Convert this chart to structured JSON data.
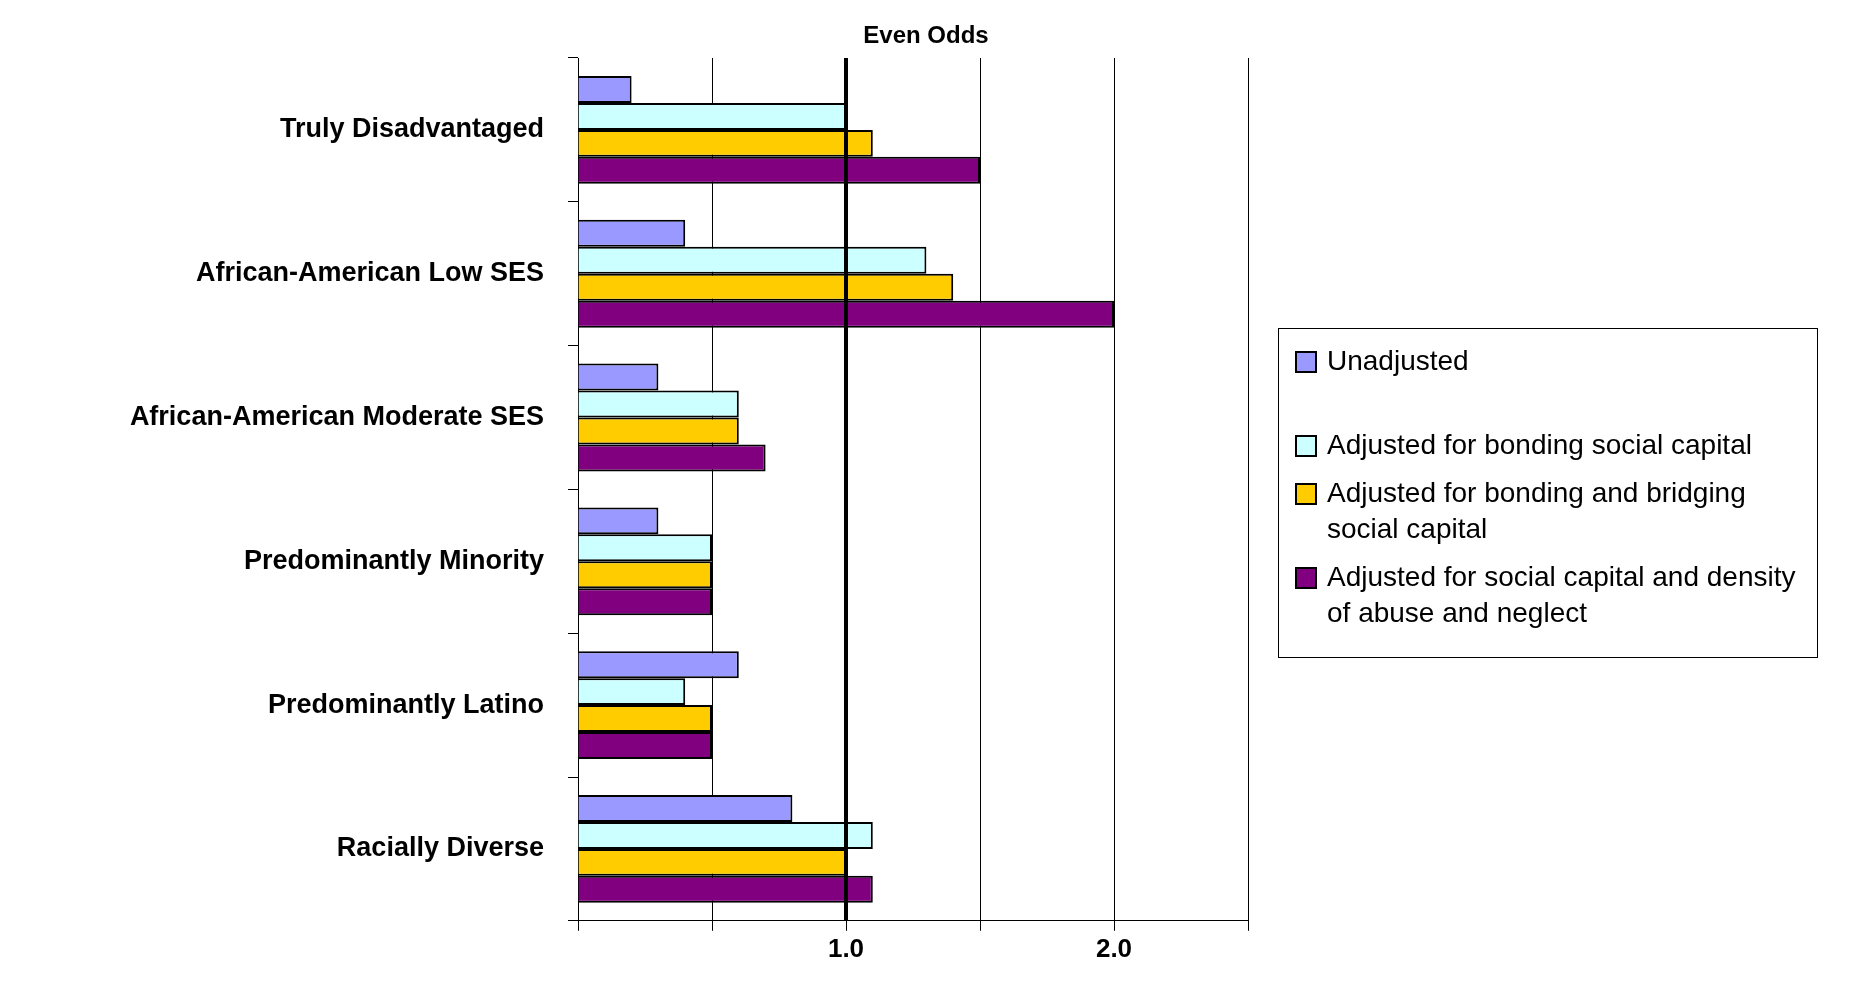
{
  "chart_data": {
    "type": "bar",
    "orientation": "horizontal",
    "categories": [
      "Truly Disadvantaged",
      "African-American Low SES",
      "African-American Moderate SES",
      "Predominantly Minority",
      "Predominantly Latino",
      "Racially Diverse"
    ],
    "series": [
      {
        "name": "Unadjusted",
        "color": "#9999ff",
        "values": [
          0.2,
          0.4,
          0.3,
          0.3,
          0.6,
          0.8
        ]
      },
      {
        "name": "Adjusted for bonding social capital",
        "color": "#ccffff",
        "values": [
          1.0,
          1.3,
          0.6,
          0.5,
          0.4,
          1.1
        ]
      },
      {
        "name": "Adjusted for bonding and bridging social capital",
        "color": "#ffcc00",
        "values": [
          1.1,
          1.4,
          0.6,
          0.5,
          0.5,
          1.0
        ]
      },
      {
        "name": "Adjusted for social capital and density of abuse and neglect",
        "color": "#800080",
        "values": [
          1.5,
          2.0,
          0.7,
          0.5,
          0.5,
          1.1
        ]
      }
    ],
    "xlim": [
      0,
      2.5
    ],
    "xticks": [
      {
        "value": 0,
        "label": null
      },
      {
        "value": 0.5,
        "label": null
      },
      {
        "value": 1.0,
        "label": "1.0"
      },
      {
        "value": 1.5,
        "label": null
      },
      {
        "value": 2.0,
        "label": "2.0"
      },
      {
        "value": 2.5,
        "label": null
      }
    ],
    "ref_lines": [
      {
        "axis": "x",
        "value": 1.0,
        "label": "Even Odds",
        "color": "#000000"
      }
    ],
    "grid": "x",
    "legend": "right"
  }
}
